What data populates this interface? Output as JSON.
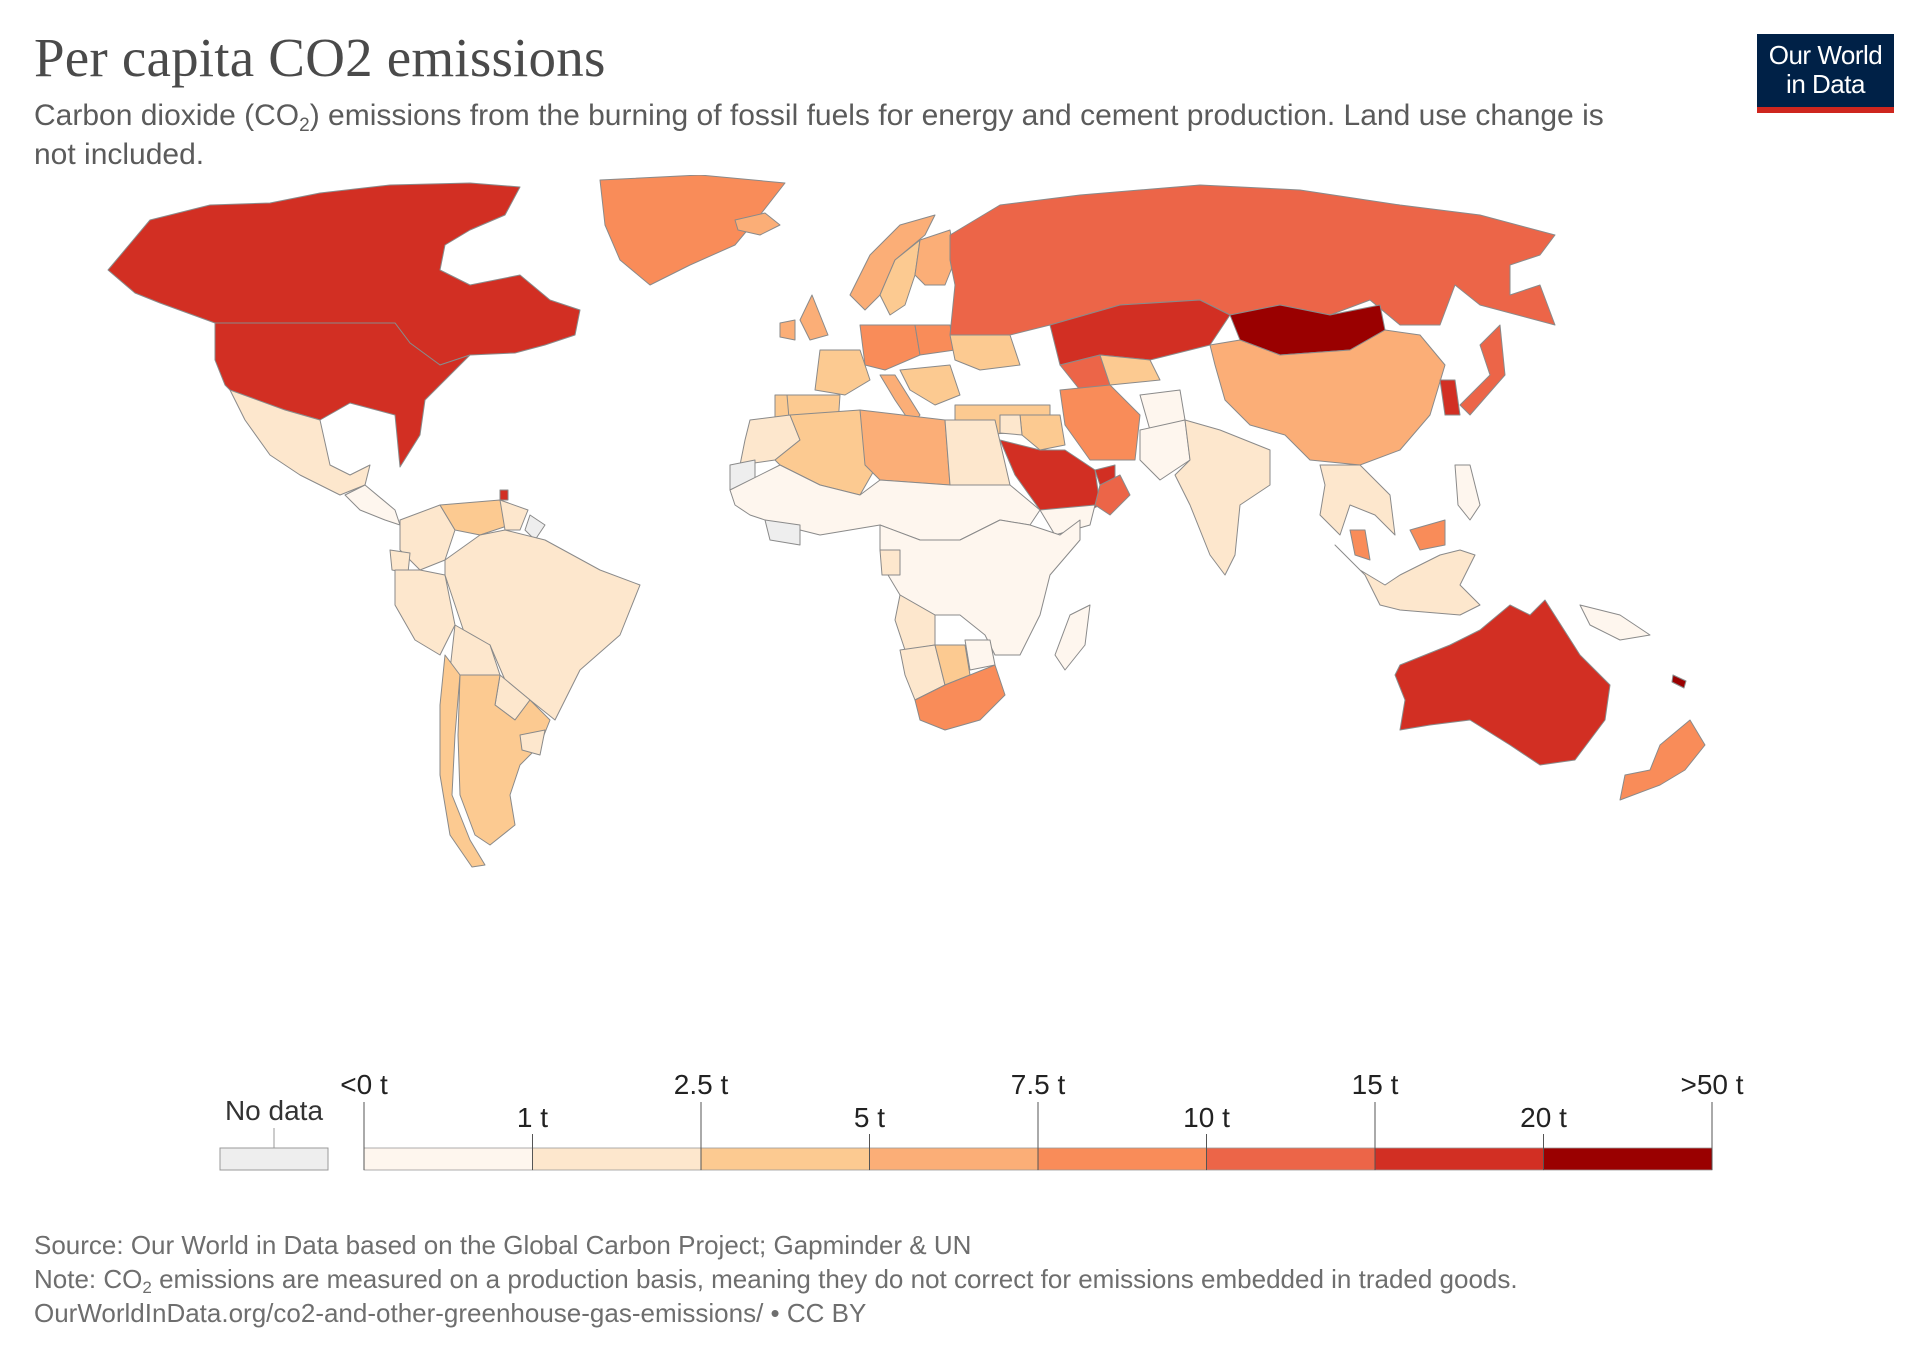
{
  "header": {
    "title_prefix": "Per capita CO",
    "title_sub": "2",
    "title_suffix": " emissions",
    "subtitle_a": "Carbon dioxide (CO",
    "subtitle_sub": "2",
    "subtitle_b": ") emissions from the burning of fossil fuels for energy and cement production. Land use change is not included."
  },
  "logo": {
    "line1": "Our World",
    "line2": "in Data",
    "bg": "#002147",
    "accent": "#ce261e"
  },
  "legend": {
    "no_data_label": "No data",
    "no_data_color": "#eeeeee",
    "breaks": [
      "<0 t",
      "1 t",
      "2.5 t",
      "5 t",
      "7.5 t",
      "10 t",
      "15 t",
      "20 t",
      ">50 t"
    ],
    "colors": [
      "#fef6ee",
      "#fde7cd",
      "#fcca91",
      "#fbae77",
      "#f98c59",
      "#ec6548",
      "#d22f23",
      "#9a0000"
    ]
  },
  "map": {
    "land_default": "#fef8f1",
    "border": "#8a8a8a",
    "regions": [
      {
        "name": "Canada",
        "bin": 6
      },
      {
        "name": "Greenland",
        "bin": 4
      },
      {
        "name": "United States",
        "bin": 6
      },
      {
        "name": "Mexico",
        "bin": 1
      },
      {
        "name": "Central America",
        "bin": 0
      },
      {
        "name": "Colombia",
        "bin": 1
      },
      {
        "name": "Venezuela",
        "bin": 2
      },
      {
        "name": "Guyana",
        "bin": 1
      },
      {
        "name": "French Guiana",
        "bin": -1
      },
      {
        "name": "Ecuador",
        "bin": 1
      },
      {
        "name": "Peru",
        "bin": 1
      },
      {
        "name": "Brazil",
        "bin": 1
      },
      {
        "name": "Bolivia",
        "bin": 1
      },
      {
        "name": "Paraguay",
        "bin": 1
      },
      {
        "name": "Chile",
        "bin": 2
      },
      {
        "name": "Argentina",
        "bin": 2
      },
      {
        "name": "Uruguay",
        "bin": 1
      },
      {
        "name": "Trinidad and Tobago",
        "bin": 6
      },
      {
        "name": "Iceland",
        "bin": 3
      },
      {
        "name": "United Kingdom",
        "bin": 3
      },
      {
        "name": "Ireland",
        "bin": 3
      },
      {
        "name": "Norway",
        "bin": 3
      },
      {
        "name": "Sweden",
        "bin": 2
      },
      {
        "name": "Finland",
        "bin": 3
      },
      {
        "name": "Spain",
        "bin": 2
      },
      {
        "name": "Portugal",
        "bin": 2
      },
      {
        "name": "France",
        "bin": 2
      },
      {
        "name": "Central Europe",
        "bin": 4
      },
      {
        "name": "Italy",
        "bin": 3
      },
      {
        "name": "Poland",
        "bin": 4
      },
      {
        "name": "Ukraine",
        "bin": 2
      },
      {
        "name": "Balkans",
        "bin": 2
      },
      {
        "name": "Turkey",
        "bin": 2
      },
      {
        "name": "Russia",
        "bin": 5
      },
      {
        "name": "Kazakhstan",
        "bin": 6
      },
      {
        "name": "Mongolia",
        "bin": 7
      },
      {
        "name": "Turkmenistan",
        "bin": 5
      },
      {
        "name": "Uzbekistan",
        "bin": 2
      },
      {
        "name": "Iran",
        "bin": 4
      },
      {
        "name": "Iraq",
        "bin": 2
      },
      {
        "name": "Syria",
        "bin": 1
      },
      {
        "name": "Saudi Arabia",
        "bin": 6
      },
      {
        "name": "UAE",
        "bin": 6
      },
      {
        "name": "Oman",
        "bin": 5
      },
      {
        "name": "Yemen",
        "bin": 0
      },
      {
        "name": "Afghanistan",
        "bin": 0
      },
      {
        "name": "Pakistan",
        "bin": 0
      },
      {
        "name": "India",
        "bin": 1
      },
      {
        "name": "China",
        "bin": 3
      },
      {
        "name": "Korea",
        "bin": 6
      },
      {
        "name": "Japan",
        "bin": 5
      },
      {
        "name": "Southeast Asia",
        "bin": 1
      },
      {
        "name": "Malaysia",
        "bin": 4
      },
      {
        "name": "Indonesia",
        "bin": 1
      },
      {
        "name": "Philippines",
        "bin": 0
      },
      {
        "name": "Papua New Guinea",
        "bin": 0
      },
      {
        "name": "Australia",
        "bin": 6
      },
      {
        "name": "New Zealand",
        "bin": 4
      },
      {
        "name": "New Caledonia",
        "bin": 7
      },
      {
        "name": "Morocco",
        "bin": 1
      },
      {
        "name": "Western Sahara",
        "bin": -1
      },
      {
        "name": "Algeria",
        "bin": 2
      },
      {
        "name": "Libya",
        "bin": 3
      },
      {
        "name": "Egypt",
        "bin": 1
      },
      {
        "name": "Sahel and West Africa",
        "bin": 0
      },
      {
        "name": "Sierra Leone / Liberia",
        "bin": -1
      },
      {
        "name": "Central and East Africa",
        "bin": 0
      },
      {
        "name": "Gabon",
        "bin": 1
      },
      {
        "name": "Angola",
        "bin": 1
      },
      {
        "name": "Namibia",
        "bin": 1
      },
      {
        "name": "Botswana",
        "bin": 2
      },
      {
        "name": "Zimbabwe",
        "bin": 0
      },
      {
        "name": "South Africa",
        "bin": 4
      },
      {
        "name": "Madagascar",
        "bin": 0
      }
    ]
  },
  "footer": {
    "source": "Source: Our World in Data based on the Global Carbon Project; Gapminder & UN",
    "note_a": "Note: CO",
    "note_sub": "2",
    "note_b": " emissions are measured on a production basis, meaning they do not correct for emissions embedded in traded goods.",
    "url": "OurWorldInData.org/co2-and-other-greenhouse-gas-emissions/ • CC BY"
  }
}
